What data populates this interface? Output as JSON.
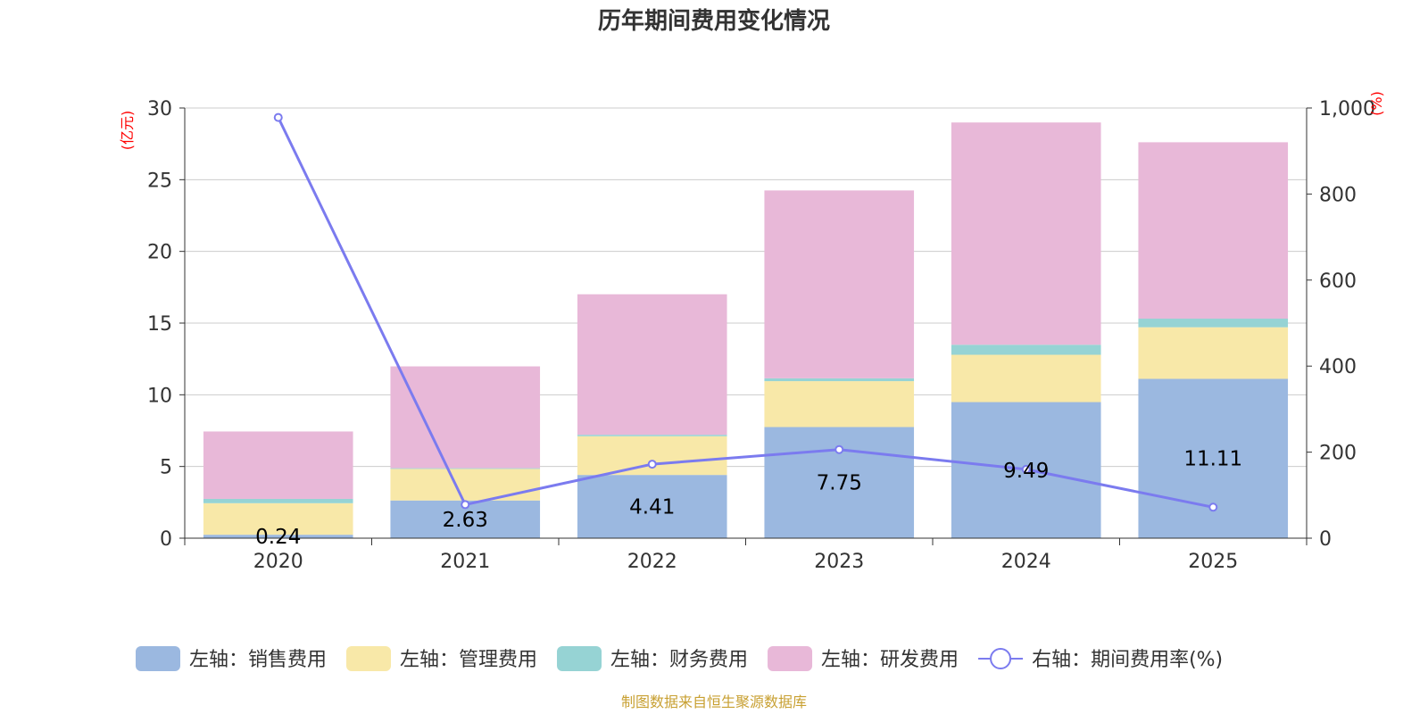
{
  "chart_data": {
    "type": "bar",
    "stacked": true,
    "title": "历年期间费用变化情况",
    "categories": [
      "2020",
      "2021",
      "2022",
      "2023",
      "2024",
      "2025"
    ],
    "left_axis": {
      "unit": "(亿元)",
      "ylim": [
        0,
        30
      ],
      "ticks": [
        "0",
        "5",
        "10",
        "15",
        "20",
        "25",
        "30"
      ]
    },
    "right_axis": {
      "unit": "(%)",
      "ylim": [
        0,
        1000
      ],
      "ticks": [
        "0",
        "200",
        "400",
        "600",
        "800",
        "1,000"
      ]
    },
    "series": [
      {
        "name": "左轴：销售费用",
        "type": "bar",
        "axis": "left",
        "color": "#9bb8e0",
        "values": [
          0.24,
          2.63,
          4.41,
          7.75,
          9.49,
          11.11
        ],
        "labels": [
          "0.24",
          "2.63",
          "4.41",
          "7.75",
          "9.49",
          "11.11"
        ]
      },
      {
        "name": "左轴：管理费用",
        "type": "bar",
        "axis": "left",
        "color": "#f8e8a8",
        "values": [
          2.2,
          2.2,
          2.7,
          3.2,
          3.3,
          3.6
        ]
      },
      {
        "name": "左轴：财务费用",
        "type": "bar",
        "axis": "left",
        "color": "#96d3d4",
        "values": [
          0.3,
          0.05,
          0.1,
          0.2,
          0.7,
          0.6
        ]
      },
      {
        "name": "左轴：研发费用",
        "type": "bar",
        "axis": "left",
        "color": "#e8b8d8",
        "values": [
          4.7,
          7.1,
          9.8,
          13.1,
          15.5,
          12.3
        ]
      },
      {
        "name": "右轴：期间费用率(%)",
        "type": "line",
        "axis": "right",
        "color": "#7b7bef",
        "values": [
          978,
          78,
          172,
          206,
          160,
          72
        ]
      }
    ],
    "source": "制图数据来自恒生聚源数据库"
  }
}
